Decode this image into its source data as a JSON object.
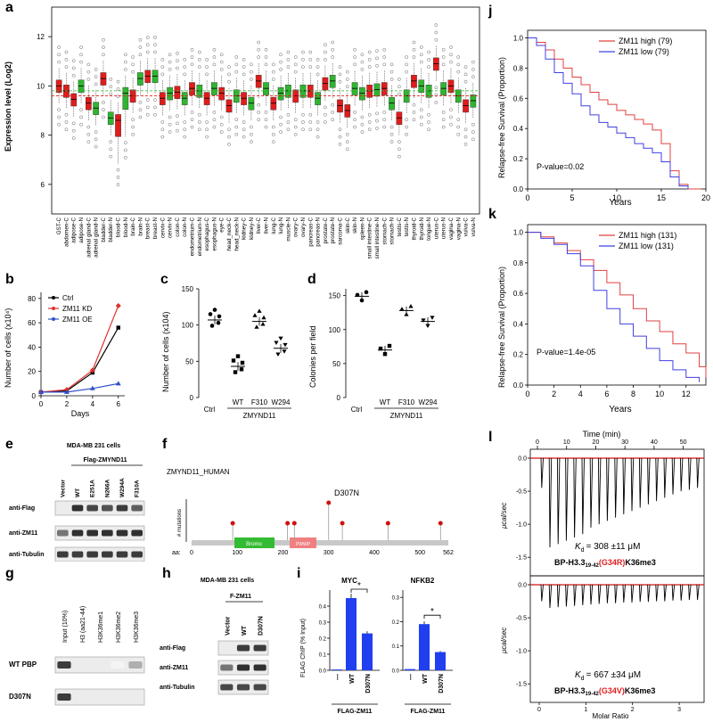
{
  "panels": {
    "a": {
      "label": "a",
      "ylabel": "Expression level (Log2)",
      "yticks": [
        "12",
        "10",
        "8",
        "6"
      ],
      "tissues": [
        "GST-C",
        "abdomen-C",
        "adipose-C",
        "adipose-N",
        "adrenal gland-C",
        "adrenal gland-N",
        "bladder-C",
        "bladder-N",
        "blood-C",
        "blood-N",
        "brain-C",
        "brain-N",
        "breast-C",
        "breast-N",
        "cervix-C",
        "cervix-N",
        "colon-C",
        "colon-N",
        "endometrium-C",
        "endometrium-N",
        "esophagus-C",
        "esophagus-N",
        "eye-C",
        "head_neck-C",
        "head_neck-N",
        "kidney-C",
        "kidney-N",
        "liver-C",
        "liver-N",
        "lung-C",
        "lung-N",
        "muscle-N",
        "ovary-C",
        "ovary-N",
        "pancreas-C",
        "pancreas-N",
        "prostate-C",
        "prostate-N",
        "sarcoma-C",
        "skin-C",
        "skin-N",
        "spleen-N",
        "small intestine-C",
        "small intestine-N",
        "stomach-C",
        "stomach-N",
        "testis-C",
        "testis-N",
        "thyroid-C",
        "thyroid-N",
        "tongue-N",
        "uterus-C",
        "uterus-N",
        "vagina-C",
        "vagina-N",
        "vulva-C",
        "vulva-N"
      ],
      "medians": [
        10.0,
        9.8,
        9.45,
        10.0,
        9.3,
        9.1,
        10.3,
        8.7,
        8.6,
        9.7,
        9.6,
        10.3,
        10.4,
        10.4,
        9.5,
        9.7,
        9.75,
        9.5,
        9.9,
        9.8,
        9.5,
        9.9,
        9.7,
        9.2,
        9.6,
        9.5,
        9.3,
        10.2,
        9.9,
        9.3,
        9.7,
        9.8,
        9.6,
        9.8,
        9.8,
        9.5,
        10.1,
        10.2,
        9.2,
        9.0,
        9.9,
        9.7,
        9.8,
        9.85,
        9.9,
        9.3,
        8.7,
        9.6,
        10.2,
        10.0,
        9.8,
        10.9,
        9.9,
        10.0,
        9.6,
        9.2,
        9.4
      ],
      "normal_median": 9.8,
      "tumor_median": 9.6
    },
    "b": {
      "label": "b",
      "ylabel": "Number of cells (x10⁴)",
      "xlabel": "Days",
      "xticks": [
        "0",
        "2",
        "4",
        "6"
      ],
      "yticks": [
        "0",
        "20",
        "40",
        "60",
        "80"
      ],
      "legend": [
        "Ctrl",
        "ZM11 KD",
        "ZM11 OE"
      ],
      "chart_data": {
        "type": "line",
        "x": [
          0,
          2,
          4,
          6
        ],
        "series": [
          {
            "name": "Ctrl",
            "values": [
              3,
              4,
              19,
              56
            ],
            "color": "#000000"
          },
          {
            "name": "ZM11 KD",
            "values": [
              3,
              5,
              21,
              74
            ],
            "color": "#e0302b"
          },
          {
            "name": "ZM11 OE",
            "values": [
              3,
              3,
              6,
              10
            ],
            "color": "#3050c8"
          }
        ],
        "xlim": [
          0,
          6.5
        ],
        "ylim": [
          0,
          85
        ]
      }
    },
    "c": {
      "label": "c",
      "ylabel": "Number of cells (x104)",
      "yticks": [
        "0",
        "50",
        "100",
        "150"
      ],
      "groups": [
        "Ctrl",
        "WT",
        "F310",
        "W294"
      ],
      "underline_label": "ZMYND11",
      "chart_data": {
        "type": "scatter",
        "categories": [
          "Ctrl",
          "WT",
          "F310",
          "W294"
        ],
        "means": [
          107,
          43,
          105,
          68
        ],
        "ylim": [
          0,
          150
        ]
      }
    },
    "d": {
      "label": "d",
      "ylabel": "Colonies per field",
      "yticks": [
        "0",
        "50",
        "100",
        "150"
      ],
      "groups": [
        "Ctrl",
        "WT",
        "F310",
        "W294"
      ],
      "underline_label": "ZMYND11",
      "chart_data": {
        "type": "scatter",
        "categories": [
          "Ctrl",
          "WT",
          "F310",
          "W294"
        ],
        "means": [
          149,
          70,
          128,
          112
        ],
        "ylim": [
          0,
          160
        ]
      }
    },
    "e": {
      "label": "e",
      "cell_line": "MDA-MB 231 cells",
      "construct": "Flag-ZMYND11",
      "lanes": [
        "Vector",
        "WT",
        "E251A",
        "N266A",
        "W294A",
        "F310A"
      ],
      "rows": [
        "anti-Flag",
        "anti-ZM11",
        "anti-Tubulin"
      ]
    },
    "f": {
      "label": "f",
      "protein": "ZMYND11_HUMAN",
      "ylabel": "# mutations",
      "mutation": "D307N",
      "domain1": "Bromo",
      "domain2": "PWWP",
      "aa_label": "aa:",
      "ticks": [
        "0",
        "100",
        "200",
        "300",
        "400",
        "500",
        "562"
      ]
    },
    "g": {
      "label": "g",
      "lanes": [
        "Input (10%)",
        "H3 (aa21-44)",
        "H3K36me1",
        "H3K36me2",
        "H3K36me3"
      ],
      "rows": [
        "WT PBP",
        "D307N"
      ]
    },
    "h": {
      "label": "h",
      "cell_line": "MDA-MB 231 cells",
      "construct": "F-ZM11",
      "lanes": [
        "Vector",
        "WT",
        "D307N"
      ],
      "rows": [
        "anti-Flag",
        "anti-ZM11",
        "anti-Tubulin"
      ]
    },
    "i": {
      "label": "i",
      "ylabel": "FLAG ChIP (% Input)",
      "sig": "*",
      "groups": [
        "—",
        "WT",
        "D307N"
      ],
      "construct": "FLAG-ZM11",
      "charts": [
        {
          "title": "MYC",
          "yticks": [
            "0.0",
            "0.1",
            "0.2",
            "0.3",
            "0.4"
          ],
          "chart_data": {
            "type": "bar",
            "categories": [
              "—",
              "WT",
              "D307N"
            ],
            "values": [
              0.005,
              0.45,
              0.23
            ],
            "ylim": [
              0,
              0.5
            ]
          }
        },
        {
          "title": "NFKB2",
          "yticks": [
            "0.0",
            "0.1",
            "0.2",
            "0.3"
          ],
          "chart_data": {
            "type": "bar",
            "categories": [
              "—",
              "WT",
              "D307N"
            ],
            "values": [
              0.005,
              0.19,
              0.075
            ],
            "ylim": [
              0,
              0.33
            ]
          }
        }
      ]
    },
    "j": {
      "label": "j",
      "ylabel": "Relapse-free Survival (Proportion)",
      "xlabel": "Years",
      "xticks": [
        "0",
        "5",
        "10",
        "15",
        "20"
      ],
      "yticks": [
        "0.0",
        "0.2",
        "0.4",
        "0.6",
        "0.8",
        "1.0"
      ],
      "legend": [
        "ZM11 high (79)",
        "ZM11 low (79)"
      ],
      "pvalue": "P-value=0.02",
      "chart_data": {
        "type": "line",
        "xlim": [
          0,
          20
        ],
        "ylim": [
          0,
          1.05
        ],
        "series": [
          {
            "name": "ZM11 high (79)",
            "color": "#e04040",
            "x": [
              0,
              1,
              2,
              3,
              4,
              5,
              6,
              7,
              8,
              9,
              10,
              11,
              12,
              13,
              14,
              15,
              16,
              17,
              18,
              19.5
            ],
            "values": [
              1.0,
              0.97,
              0.92,
              0.86,
              0.8,
              0.74,
              0.69,
              0.64,
              0.59,
              0.56,
              0.52,
              0.49,
              0.46,
              0.43,
              0.39,
              0.3,
              0.12,
              0.03,
              0.0,
              0.0
            ]
          },
          {
            "name": "ZM11 low (79)",
            "color": "#4040e0",
            "x": [
              0,
              1,
              2,
              3,
              4,
              5,
              6,
              7,
              8,
              9,
              10,
              11,
              12,
              13,
              14,
              15,
              16,
              17,
              18
            ],
            "values": [
              1.0,
              0.95,
              0.86,
              0.77,
              0.7,
              0.63,
              0.55,
              0.49,
              0.44,
              0.41,
              0.37,
              0.34,
              0.3,
              0.27,
              0.24,
              0.18,
              0.08,
              0.02,
              0.0
            ]
          }
        ]
      }
    },
    "k": {
      "label": "k",
      "ylabel": "Relapse-free Survival (Proportion)",
      "xlabel": "Years",
      "xticks": [
        "0",
        "2",
        "4",
        "6",
        "8",
        "10",
        "12"
      ],
      "yticks": [
        "0.0",
        "0.2",
        "0.4",
        "0.6",
        "0.8",
        "1.0"
      ],
      "legend": [
        "ZM11 high (131)",
        "ZM11 low (131)"
      ],
      "pvalue": "P-value=1.4e-05",
      "chart_data": {
        "type": "line",
        "xlim": [
          0,
          13.5
        ],
        "ylim": [
          0,
          1.05
        ],
        "series": [
          {
            "name": "ZM11 high (131)",
            "color": "#e04040",
            "x": [
              0,
              1,
              2,
              3,
              4,
              5,
              6,
              7,
              8,
              9,
              10,
              11,
              12,
              13,
              13.5
            ],
            "values": [
              1.0,
              0.97,
              0.93,
              0.88,
              0.82,
              0.75,
              0.67,
              0.59,
              0.5,
              0.42,
              0.35,
              0.27,
              0.21,
              0.12,
              0.05
            ]
          },
          {
            "name": "ZM11 low (131)",
            "color": "#4040e0",
            "x": [
              0,
              1,
              2,
              3,
              4,
              5,
              6,
              7,
              8,
              9,
              10,
              11,
              12,
              13
            ],
            "values": [
              1.0,
              0.96,
              0.92,
              0.86,
              0.78,
              0.62,
              0.5,
              0.4,
              0.32,
              0.24,
              0.16,
              0.1,
              0.05,
              0.02
            ]
          }
        ]
      }
    },
    "l": {
      "label": "l",
      "time_label": "Time (min)",
      "time_ticks": [
        "0",
        "10",
        "20",
        "30",
        "40",
        "50"
      ],
      "ylabel": "μcal/sec",
      "yticks": [
        "0.0",
        "-0.5",
        "-1.0",
        "-1.5"
      ],
      "xlabel": "Molar Ratio",
      "xticks": [
        "0",
        "1",
        "2",
        "3"
      ],
      "top": {
        "kd_sym": "K",
        "kd_sub": "d",
        "kd_value": "= 308 ±11 μM",
        "pep_pre": "BP-H3.3",
        "pep_sub": "19-42",
        "pep_mut": "(G34R)",
        "pep_post": "K36me3",
        "chart_data": {
          "type": "line",
          "name": "injection peak heights (μcal/sec)",
          "values": [
            -0.45,
            -1.35,
            -1.3,
            -1.25,
            -1.2,
            -1.15,
            -1.05,
            -1.0,
            -0.95,
            -0.9,
            -0.85,
            -0.8,
            -0.75,
            -0.7,
            -0.65,
            -0.6,
            -0.55,
            -0.5,
            -0.48,
            -0.45
          ]
        }
      },
      "bottom": {
        "kd_sym": "K",
        "kd_sub": "d",
        "kd_value": "= 667 ±34 μM",
        "pep_pre": "BP-H3.3",
        "pep_sub": "19-42",
        "pep_mut": "(G34V)",
        "pep_post": "K36me3",
        "chart_data": {
          "type": "line",
          "name": "injection peak heights (μcal/sec)",
          "values": [
            -0.25,
            -0.35,
            -0.34,
            -0.33,
            -0.32,
            -0.31,
            -0.3,
            -0.29,
            -0.28,
            -0.28,
            -0.27,
            -0.27,
            -0.26,
            -0.26,
            -0.25,
            -0.25,
            -0.24,
            -0.24,
            -0.23,
            -0.23
          ]
        }
      }
    }
  }
}
